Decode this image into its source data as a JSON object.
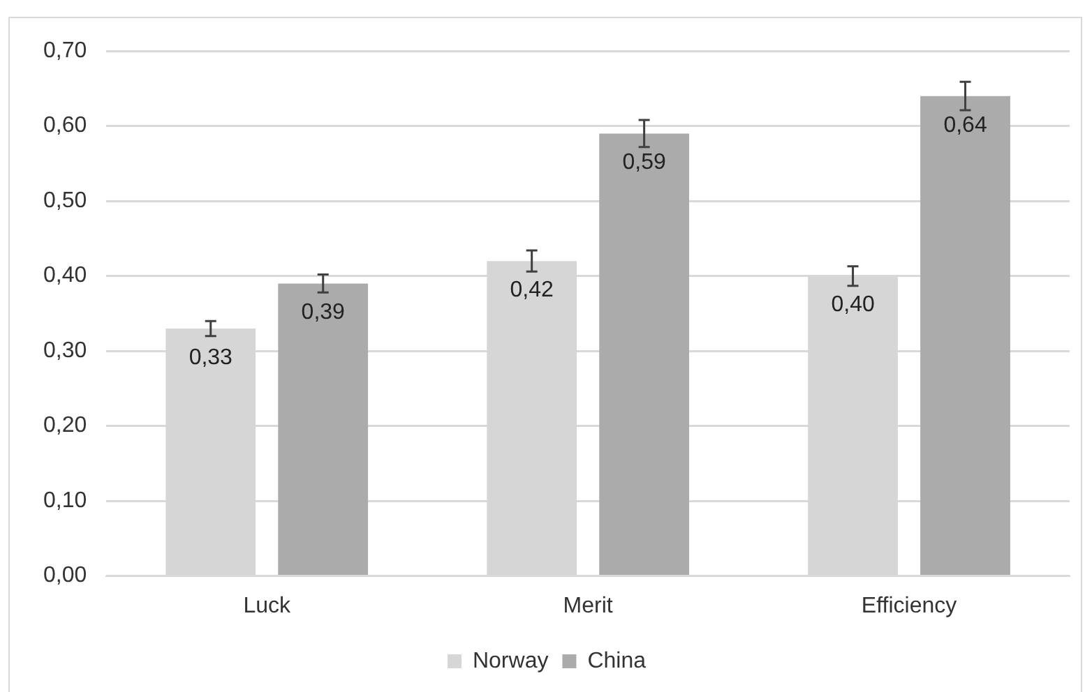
{
  "chart_data": {
    "type": "bar",
    "categories": [
      "Luck",
      "Merit",
      "Efficiency"
    ],
    "series": [
      {
        "name": "Norway",
        "color": "#d6d6d6",
        "values": [
          0.33,
          0.42,
          0.4
        ],
        "errors": [
          0.01,
          0.014,
          0.013
        ],
        "value_labels": [
          "0,33",
          "0,42",
          "0,40"
        ]
      },
      {
        "name": "China",
        "color": "#ababab",
        "values": [
          0.39,
          0.59,
          0.64
        ],
        "errors": [
          0.012,
          0.018,
          0.019
        ],
        "value_labels": [
          "0,39",
          "0,59",
          "0,64"
        ]
      }
    ],
    "ylim": [
      0,
      0.7
    ],
    "yticks": [
      {
        "value": 0,
        "label": "0,00"
      },
      {
        "value": 0.1,
        "label": "0,10"
      },
      {
        "value": 0.2,
        "label": "0,20"
      },
      {
        "value": 0.3,
        "label": "0,30"
      },
      {
        "value": 0.4,
        "label": "0,40"
      },
      {
        "value": 0.5,
        "label": "0,50"
      },
      {
        "value": 0.6,
        "label": "0,60"
      },
      {
        "value": 0.7,
        "label": "0,70"
      }
    ],
    "grid": "y",
    "legend": "bottom"
  }
}
